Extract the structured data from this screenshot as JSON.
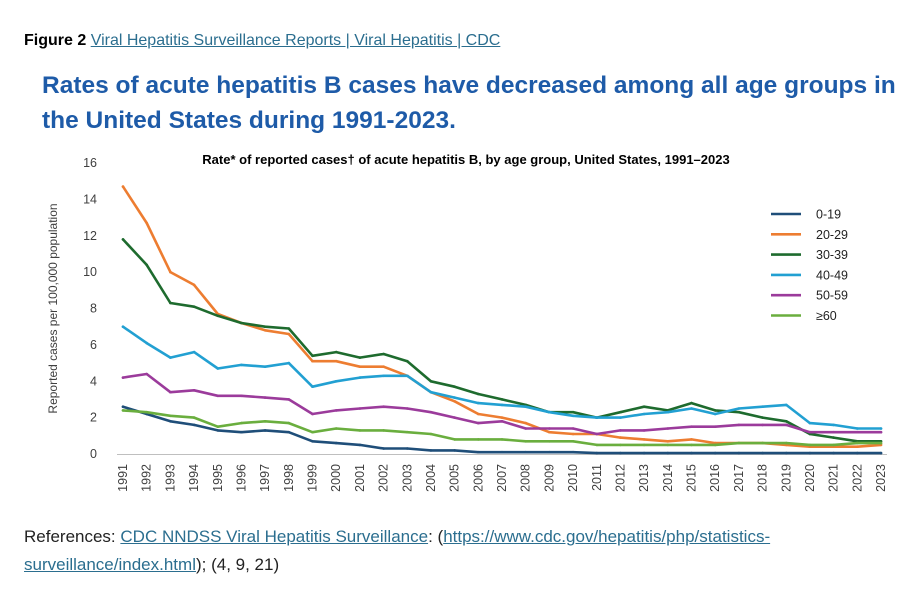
{
  "figure": {
    "label": "Figure 2",
    "link_text": "Viral Hepatitis Surveillance Reports | Viral Hepatitis | CDC"
  },
  "headline": "Rates of acute hepatitis B cases have decreased among all age groups in the United States during 1991-2023.",
  "references": {
    "prefix": "References: ",
    "link1": "CDC NNDSS Viral Hepatitis Surveillance",
    "mid": ": (",
    "link2": "https://www.cdc.gov/hepatitis/php/statistics-surveillance/index.html",
    "suffix": "); (4, 9, 21)"
  },
  "chart_data": {
    "type": "line",
    "title": "Rate* of reported cases† of acute hepatitis B, by age group, United States, 1991–2023",
    "xlabel": "",
    "ylabel": "Reported cases per 100,000 population",
    "ylim": [
      0,
      16
    ],
    "yticks": [
      0,
      2,
      4,
      6,
      8,
      10,
      12,
      14,
      16
    ],
    "grid": false,
    "legend_position": "top-right",
    "categories": [
      "1991",
      "1992",
      "1993",
      "1994",
      "1995",
      "1996",
      "1997",
      "1998",
      "1999",
      "2000",
      "2001",
      "2002",
      "2003",
      "2004",
      "2005",
      "2006",
      "2007",
      "2008",
      "2009",
      "2010",
      "2011",
      "2012",
      "2013",
      "2014",
      "2015",
      "2016",
      "2017",
      "2018",
      "2019",
      "2020",
      "2021",
      "2022",
      "2023"
    ],
    "series": [
      {
        "name": "0-19",
        "color": "#1f4e79",
        "values": [
          2.6,
          2.2,
          1.8,
          1.6,
          1.3,
          1.2,
          1.3,
          1.2,
          0.7,
          0.6,
          0.5,
          0.3,
          0.3,
          0.2,
          0.2,
          0.1,
          0.1,
          0.1,
          0.1,
          0.1,
          0.05,
          0.05,
          0.05,
          0.05,
          0.05,
          0.05,
          0.05,
          0.05,
          0.05,
          0.05,
          0.05,
          0.05,
          0.05
        ]
      },
      {
        "name": "20-29",
        "color": "#ed7d31",
        "values": [
          14.7,
          12.7,
          10.0,
          9.3,
          7.7,
          7.2,
          6.8,
          6.6,
          5.1,
          5.1,
          4.8,
          4.8,
          4.3,
          3.4,
          2.9,
          2.2,
          2.0,
          1.7,
          1.2,
          1.1,
          1.1,
          0.9,
          0.8,
          0.7,
          0.8,
          0.6,
          0.6,
          0.6,
          0.5,
          0.4,
          0.4,
          0.4,
          0.5
        ]
      },
      {
        "name": "30-39",
        "color": "#1e6b2e",
        "values": [
          11.8,
          10.4,
          8.3,
          8.1,
          7.6,
          7.2,
          7.0,
          6.9,
          5.4,
          5.6,
          5.3,
          5.5,
          5.1,
          4.0,
          3.7,
          3.3,
          3.0,
          2.7,
          2.3,
          2.3,
          2.0,
          2.3,
          2.6,
          2.4,
          2.8,
          2.4,
          2.3,
          2.0,
          1.8,
          1.1,
          0.9,
          0.7,
          0.7
        ]
      },
      {
        "name": "40-49",
        "color": "#22a0d2",
        "values": [
          7.0,
          6.1,
          5.3,
          5.6,
          4.7,
          4.9,
          4.8,
          5.0,
          3.7,
          4.0,
          4.2,
          4.3,
          4.3,
          3.4,
          3.1,
          2.8,
          2.7,
          2.6,
          2.3,
          2.1,
          2.0,
          2.0,
          2.2,
          2.3,
          2.5,
          2.2,
          2.5,
          2.6,
          2.7,
          1.7,
          1.6,
          1.4,
          1.4
        ]
      },
      {
        "name": "50-59",
        "color": "#9b3b9b",
        "values": [
          4.2,
          4.4,
          3.4,
          3.5,
          3.2,
          3.2,
          3.1,
          3.0,
          2.2,
          2.4,
          2.5,
          2.6,
          2.5,
          2.3,
          2.0,
          1.7,
          1.8,
          1.4,
          1.4,
          1.4,
          1.1,
          1.3,
          1.3,
          1.4,
          1.5,
          1.5,
          1.6,
          1.6,
          1.6,
          1.2,
          1.2,
          1.2,
          1.2
        ]
      },
      {
        "name": "≥60",
        "color": "#6aae3e",
        "values": [
          2.4,
          2.3,
          2.1,
          2.0,
          1.5,
          1.7,
          1.8,
          1.7,
          1.2,
          1.4,
          1.3,
          1.3,
          1.2,
          1.1,
          0.8,
          0.8,
          0.8,
          0.7,
          0.7,
          0.7,
          0.5,
          0.5,
          0.5,
          0.5,
          0.5,
          0.5,
          0.6,
          0.6,
          0.6,
          0.5,
          0.5,
          0.6,
          0.6
        ]
      }
    ]
  }
}
